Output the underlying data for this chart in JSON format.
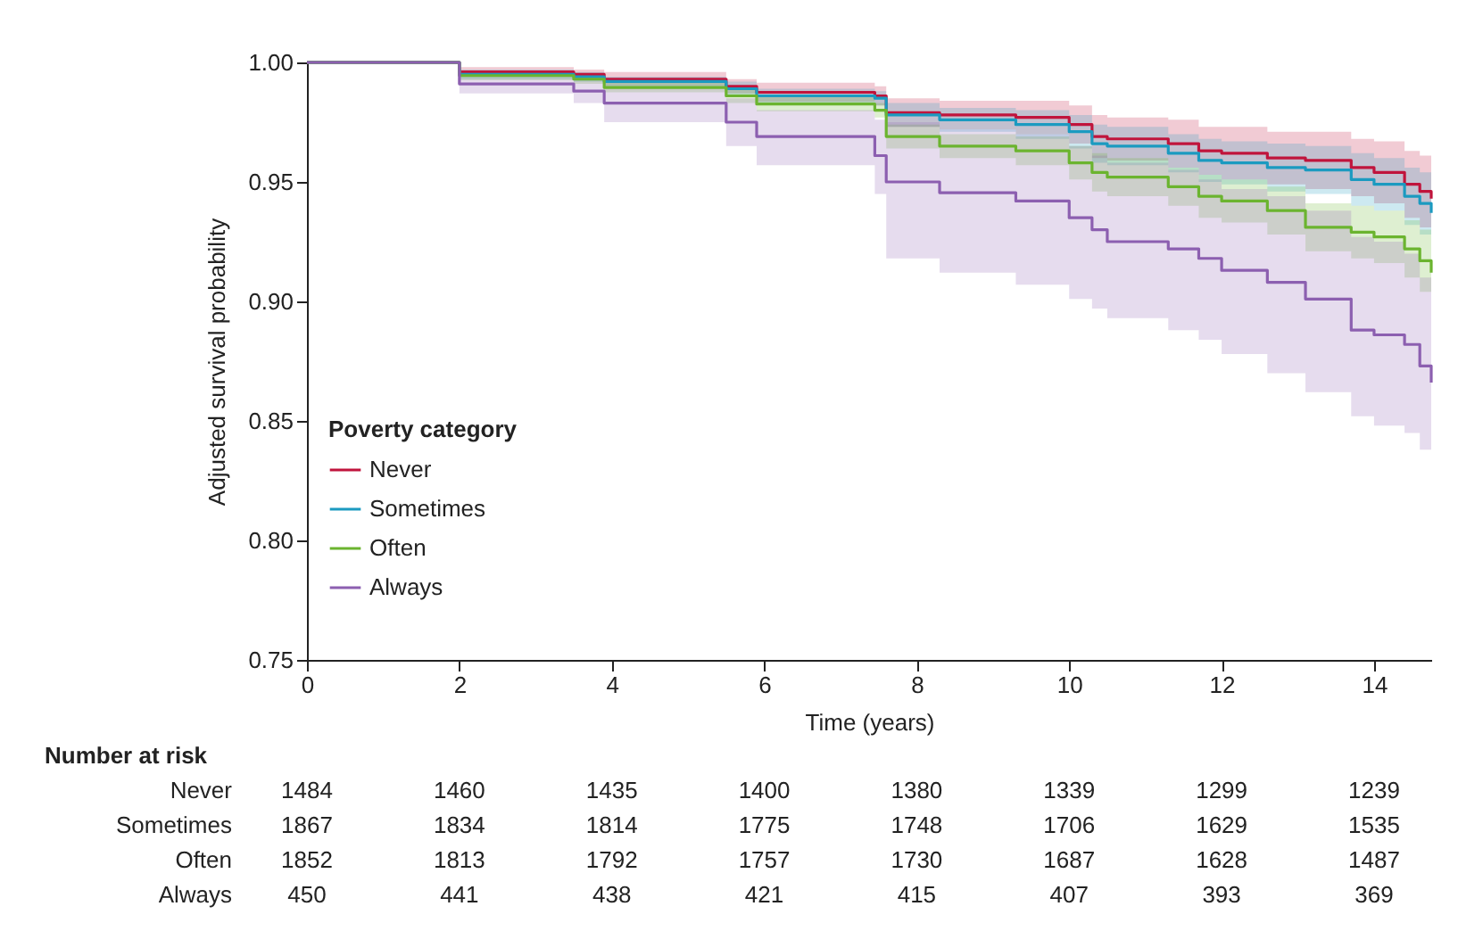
{
  "chart_data": {
    "type": "step",
    "xlabel": "Time (years)",
    "ylabel": "Adjusted survival probability",
    "legend_title": "Poverty category",
    "legend": "bottom left",
    "grid": false,
    "line_style": "solid",
    "marker": "none",
    "xlim": [
      0,
      14.75
    ],
    "xticks": [
      0,
      2,
      4,
      6,
      8,
      10,
      12,
      14
    ],
    "ylim": [
      0.75,
      1.0
    ],
    "yticks": [
      0.75,
      {
        "value": 0.8,
        "label": "0.80"
      },
      0.85,
      {
        "value": 0.9,
        "label": "0.90"
      },
      0.95,
      {
        "value": 1.0,
        "label": "1.00"
      }
    ],
    "x": [
      0,
      2,
      3.5,
      3.9,
      5.5,
      5.9,
      7.45,
      7.6,
      8.3,
      9.3,
      10.0,
      10.3,
      10.5,
      11.3,
      11.7,
      12.0,
      12.6,
      13.1,
      13.7,
      14.0,
      14.4,
      14.6,
      14.75
    ],
    "series": [
      {
        "name": "Never",
        "color": "#c0143c",
        "values": [
          1.0,
          0.996,
          0.995,
          0.993,
          0.99,
          0.9875,
          0.986,
          0.979,
          0.978,
          0.977,
          0.974,
          0.969,
          0.968,
          0.966,
          0.963,
          0.962,
          0.96,
          0.959,
          0.956,
          0.954,
          0.949,
          0.946,
          0.943
        ],
        "lower": [
          1.0,
          0.994,
          0.993,
          0.99,
          0.987,
          0.9835,
          0.982,
          0.973,
          0.972,
          0.97,
          0.966,
          0.96,
          0.959,
          0.956,
          0.953,
          0.951,
          0.949,
          0.947,
          0.944,
          0.941,
          0.935,
          0.931,
          0.927
        ],
        "upper": [
          1.0,
          0.998,
          0.997,
          0.996,
          0.993,
          0.9915,
          0.99,
          0.985,
          0.984,
          0.984,
          0.982,
          0.978,
          0.977,
          0.976,
          0.973,
          0.973,
          0.971,
          0.971,
          0.968,
          0.967,
          0.963,
          0.961,
          0.959
        ]
      },
      {
        "name": "Sometimes",
        "color": "#1b9ac0",
        "values": [
          1.0,
          0.995,
          0.994,
          0.992,
          0.989,
          0.986,
          0.985,
          0.978,
          0.976,
          0.974,
          0.971,
          0.966,
          0.965,
          0.962,
          0.959,
          0.958,
          0.956,
          0.955,
          0.951,
          0.949,
          0.944,
          0.941,
          0.937
        ],
        "lower": [
          1.0,
          0.993,
          0.992,
          0.99,
          0.986,
          0.983,
          0.982,
          0.973,
          0.971,
          0.968,
          0.964,
          0.958,
          0.957,
          0.954,
          0.95,
          0.949,
          0.946,
          0.945,
          0.94,
          0.938,
          0.932,
          0.928,
          0.923
        ],
        "upper": [
          1.0,
          0.997,
          0.996,
          0.994,
          0.992,
          0.989,
          0.988,
          0.983,
          0.981,
          0.98,
          0.978,
          0.974,
          0.973,
          0.97,
          0.968,
          0.967,
          0.966,
          0.965,
          0.962,
          0.96,
          0.956,
          0.954,
          0.951
        ]
      },
      {
        "name": "Often",
        "color": "#6bb42f",
        "values": [
          1.0,
          0.9945,
          0.993,
          0.9895,
          0.986,
          0.9826,
          0.98,
          0.969,
          0.965,
          0.963,
          0.958,
          0.954,
          0.952,
          0.948,
          0.944,
          0.942,
          0.938,
          0.931,
          0.929,
          0.927,
          0.922,
          0.917,
          0.912
        ],
        "lower": [
          1.0,
          0.9925,
          0.991,
          0.9875,
          0.983,
          0.9796,
          0.977,
          0.964,
          0.96,
          0.957,
          0.951,
          0.946,
          0.944,
          0.94,
          0.935,
          0.933,
          0.928,
          0.921,
          0.918,
          0.916,
          0.91,
          0.904,
          0.898
        ],
        "upper": [
          1.0,
          0.9965,
          0.995,
          0.9915,
          0.989,
          0.9856,
          0.983,
          0.974,
          0.97,
          0.969,
          0.965,
          0.962,
          0.96,
          0.956,
          0.953,
          0.951,
          0.948,
          0.941,
          0.94,
          0.938,
          0.934,
          0.93,
          0.926
        ]
      },
      {
        "name": "Always",
        "color": "#8c5fb0",
        "values": [
          1.0,
          0.991,
          0.988,
          0.983,
          0.975,
          0.969,
          0.961,
          0.95,
          0.9455,
          0.942,
          0.935,
          0.93,
          0.925,
          0.922,
          0.918,
          0.913,
          0.908,
          0.901,
          0.888,
          0.886,
          0.882,
          0.873,
          0.866
        ],
        "lower": [
          1.0,
          0.987,
          0.983,
          0.975,
          0.965,
          0.957,
          0.945,
          0.918,
          0.912,
          0.907,
          0.901,
          0.897,
          0.893,
          0.888,
          0.884,
          0.878,
          0.87,
          0.862,
          0.852,
          0.848,
          0.845,
          0.838,
          0.83
        ],
        "upper": [
          1.0,
          0.995,
          0.993,
          0.99,
          0.985,
          0.98,
          0.976,
          0.975,
          0.972,
          0.97,
          0.965,
          0.961,
          0.958,
          0.955,
          0.951,
          0.947,
          0.944,
          0.938,
          0.927,
          0.925,
          0.92,
          0.91,
          0.902
        ]
      }
    ],
    "annotations": [
      "Number at risk",
      "Never",
      "1484",
      "1460",
      "1435",
      "1400",
      "1380",
      "1339",
      "1299",
      "1239",
      "Sometimes",
      "1867",
      "1834",
      "1814",
      "1775",
      "1748",
      "1706",
      "1629",
      "1535",
      "Often",
      "1852",
      "1813",
      "1792",
      "1757",
      "1730",
      "1687",
      "1628",
      "1487",
      "Always",
      "450",
      "441",
      "438",
      "421",
      "415",
      "407",
      "393",
      "369"
    ]
  }
}
